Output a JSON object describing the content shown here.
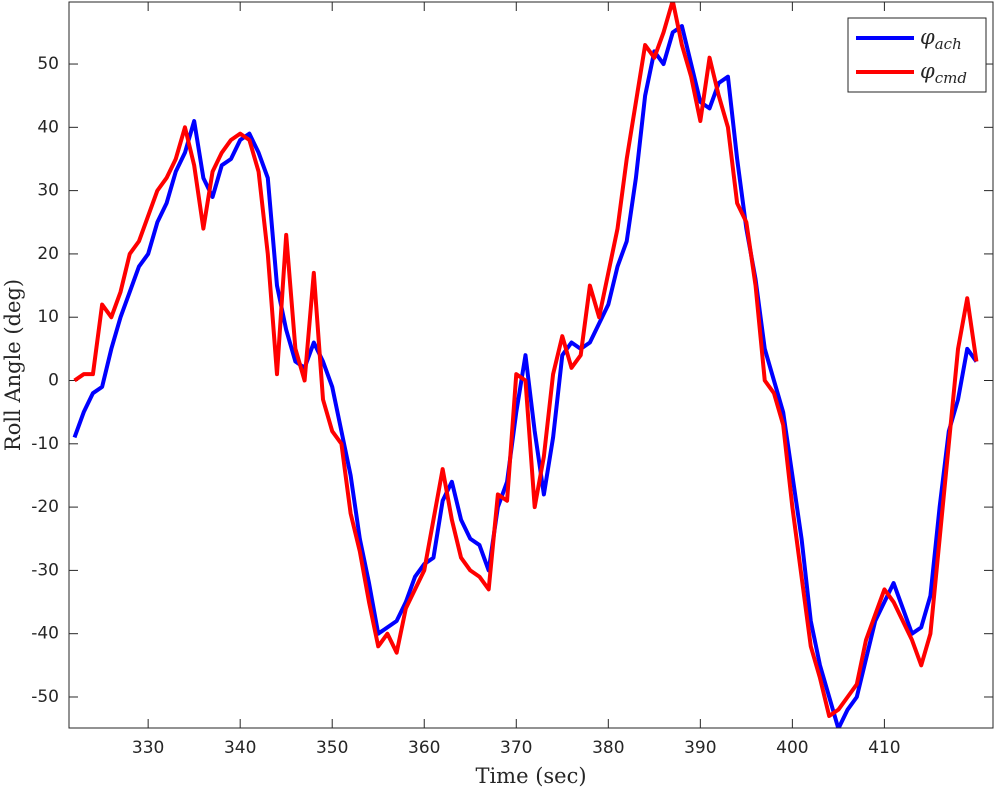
{
  "chart_data": {
    "type": "line",
    "xlabel": "Time (sec)",
    "ylabel": "Roll Angle (deg)",
    "x": [
      322,
      323,
      324,
      325,
      326,
      327,
      328,
      329,
      330,
      331,
      332,
      333,
      334,
      335,
      336,
      337,
      338,
      339,
      340,
      341,
      342,
      343,
      344,
      345,
      346,
      347,
      348,
      349,
      350,
      351,
      352,
      353,
      354,
      355,
      356,
      357,
      358,
      359,
      360,
      361,
      362,
      363,
      364,
      365,
      366,
      367,
      368,
      369,
      370,
      371,
      372,
      373,
      374,
      375,
      376,
      377,
      378,
      379,
      380,
      381,
      382,
      383,
      384,
      385,
      386,
      387,
      388,
      389,
      390,
      391,
      392,
      393,
      394,
      395,
      396,
      397,
      398,
      399,
      400,
      401,
      402,
      403,
      404,
      405,
      406,
      407,
      408,
      409,
      410,
      411,
      412,
      413,
      414,
      415,
      416,
      417,
      418,
      419,
      420
    ],
    "series": [
      {
        "name": "φach",
        "color": "#0000ff",
        "values": [
          -9,
          -5,
          -2,
          -1,
          5,
          10,
          14,
          18,
          20,
          25,
          28,
          33,
          36,
          41,
          32,
          29,
          34,
          35,
          38,
          39,
          36,
          32,
          15,
          8,
          3,
          2,
          6,
          3,
          -1,
          -8,
          -15,
          -25,
          -32,
          -40,
          -39,
          -38,
          -35,
          -31,
          -29,
          -28,
          -19,
          -16,
          -22,
          -25,
          -26,
          -30,
          -20,
          -16,
          -5,
          4,
          -8,
          -18,
          -9,
          4,
          6,
          5,
          6,
          9,
          12,
          18,
          22,
          32,
          45,
          52,
          50,
          55,
          56,
          50,
          44,
          43,
          47,
          48,
          35,
          24,
          16,
          5,
          0,
          -5,
          -15,
          -25,
          -38,
          -45,
          -50,
          -55,
          -52,
          -50,
          -44,
          -38,
          -35,
          -32,
          -36,
          -40,
          -39,
          -34,
          -20,
          -8,
          -3,
          5,
          3
        ]
      },
      {
        "name": "φcmd",
        "color": "#ff0000",
        "values": [
          0,
          1,
          1,
          12,
          10,
          14,
          20,
          22,
          26,
          30,
          32,
          35,
          40,
          34,
          24,
          33,
          36,
          38,
          39,
          38,
          33,
          20,
          1,
          23,
          5,
          0,
          17,
          -3,
          -8,
          -10,
          -21,
          -27,
          -35,
          -42,
          -40,
          -43,
          -36,
          -33,
          -30,
          -22,
          -14,
          -22,
          -28,
          -30,
          -31,
          -33,
          -18,
          -19,
          1,
          0,
          -20,
          -12,
          1,
          7,
          2,
          4,
          15,
          10,
          17,
          24,
          35,
          44,
          53,
          51,
          55,
          60,
          53,
          48,
          41,
          51,
          45,
          40,
          28,
          25,
          15,
          0,
          -2,
          -7,
          -20,
          -31,
          -42,
          -47,
          -53,
          -52,
          -50,
          -48,
          -41,
          -37,
          -33,
          -35,
          -38,
          -41,
          -45,
          -40,
          -25,
          -10,
          5,
          13,
          3
        ]
      }
    ],
    "xlim": [
      321.4,
      421.8
    ],
    "ylim": [
      -54.9,
      59.8
    ],
    "xticks": [
      330,
      340,
      350,
      360,
      370,
      380,
      390,
      400,
      410
    ],
    "yticks": [
      -50,
      -40,
      -30,
      -20,
      -10,
      0,
      10,
      20,
      30,
      40,
      50
    ],
    "legend": "upper right"
  }
}
